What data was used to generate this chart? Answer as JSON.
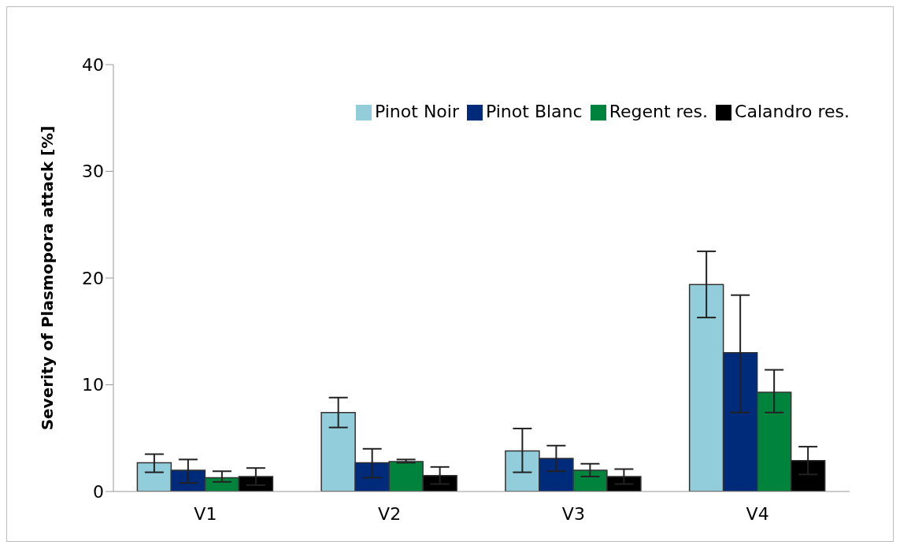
{
  "chart_data": {
    "type": "bar",
    "ylabel": "Severity of Plasmopora attack [%]",
    "categories": [
      "V1",
      "V2",
      "V3",
      "V4"
    ],
    "series": [
      {
        "name": "Pinot Noir",
        "color": "#92cddc",
        "values": [
          2.7,
          7.4,
          3.8,
          19.4
        ],
        "errors": [
          [
            1.8,
            3.5
          ],
          [
            6.0,
            8.8
          ],
          [
            1.8,
            5.9
          ],
          [
            16.3,
            22.5
          ]
        ]
      },
      {
        "name": "Pinot Blanc",
        "color": "#002a7a",
        "values": [
          2.0,
          2.7,
          3.1,
          13.0
        ],
        "errors": [
          [
            0.8,
            3.0
          ],
          [
            1.3,
            4.0
          ],
          [
            1.9,
            4.3
          ],
          [
            7.4,
            18.4
          ]
        ]
      },
      {
        "name": "Regent res.",
        "color": "#00843d",
        "values": [
          1.3,
          2.8,
          2.0,
          9.3
        ],
        "errors": [
          [
            0.9,
            1.9
          ],
          [
            2.7,
            3.0
          ],
          [
            1.4,
            2.6
          ],
          [
            7.4,
            11.4
          ]
        ]
      },
      {
        "name": "Calandro res.",
        "color": "#000000",
        "values": [
          1.4,
          1.5,
          1.4,
          2.9
        ],
        "errors": [
          [
            0.6,
            2.2
          ],
          [
            0.7,
            2.3
          ],
          [
            0.7,
            2.1
          ],
          [
            1.6,
            4.2
          ]
        ]
      }
    ],
    "ylim": [
      0,
      40
    ],
    "yticks": [
      0,
      10,
      20,
      30,
      40
    ],
    "grid": false,
    "legend": "top right"
  }
}
